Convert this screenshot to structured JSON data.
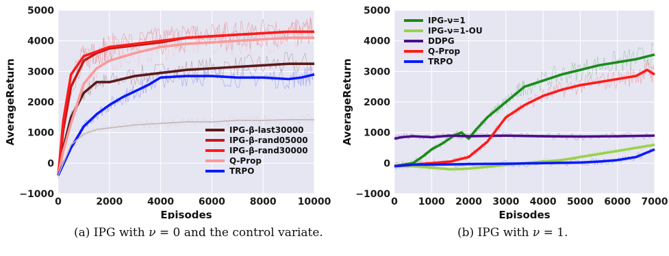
{
  "captions": {
    "left": {
      "prefix": "(a) IPG with ",
      "symbol": "ν",
      "suffix": " = 0 and the control variate."
    },
    "right": {
      "prefix": "(b) IPG with ",
      "symbol": "ν",
      "suffix": " = 1."
    }
  },
  "chart_data": [
    {
      "type": "line",
      "xlabel": "Episodes",
      "ylabel": "AverageReturn",
      "xlim": [
        0,
        10000
      ],
      "ylim": [
        -1000,
        5000
      ],
      "xticks": [
        0,
        2000,
        4000,
        6000,
        8000,
        10000
      ],
      "yticks": [
        -1000,
        0,
        1000,
        2000,
        3000,
        4000,
        5000
      ],
      "grid": true,
      "legend_position": "bottom-right",
      "series": [
        {
          "name": "IPG-β-last30000",
          "color": "#5c1a1a",
          "x": [
            0,
            200,
            500,
            1000,
            1500,
            2000,
            3000,
            4000,
            5000,
            6000,
            7000,
            8000,
            9000,
            10000
          ],
          "y": [
            -400,
            500,
            1500,
            2300,
            2650,
            2650,
            2850,
            2950,
            3050,
            3100,
            3150,
            3200,
            3250,
            3250
          ]
        },
        {
          "name": "IPG-β-rand05000",
          "color": "#c41a1a",
          "x": [
            0,
            200,
            500,
            1000,
            1500,
            2000,
            3000,
            4000,
            5000,
            6000,
            7000,
            8000,
            9000,
            10000
          ],
          "y": [
            -400,
            1100,
            2500,
            3350,
            3600,
            3750,
            3850,
            3950,
            4100,
            4150,
            4200,
            4250,
            4300,
            4300
          ]
        },
        {
          "name": "IPG-β-rand30000",
          "color": "#ff1a1a",
          "x": [
            0,
            200,
            500,
            1000,
            1500,
            2000,
            3000,
            4000,
            5000,
            6000,
            7000,
            8000,
            9000,
            10000
          ],
          "y": [
            -400,
            1400,
            2900,
            3500,
            3650,
            3800,
            3900,
            4000,
            4100,
            4150,
            4200,
            4250,
            4300,
            4300
          ]
        },
        {
          "name": "Q-Prop",
          "color": "#f89a9a",
          "x": [
            0,
            200,
            500,
            1000,
            1500,
            2000,
            3000,
            4000,
            5000,
            6000,
            7000,
            8000,
            9000,
            10000
          ],
          "y": [
            -400,
            400,
            1300,
            2600,
            3100,
            3350,
            3600,
            3800,
            3900,
            3950,
            4000,
            4050,
            4100,
            4100
          ]
        },
        {
          "name": "TRPO",
          "color": "#0a1aff",
          "x": [
            0,
            500,
            1000,
            1500,
            2000,
            2500,
            3000,
            3500,
            4000,
            5000,
            6000,
            7000,
            8000,
            9000,
            9500,
            10000
          ],
          "y": [
            -400,
            500,
            1200,
            1600,
            1900,
            2150,
            2350,
            2550,
            2800,
            2850,
            2850,
            2800,
            2800,
            2750,
            2800,
            2900
          ]
        },
        {
          "name": "",
          "color": "#c2b4b4",
          "x": [
            0,
            500,
            1000,
            1500,
            2000,
            3000,
            4000,
            5000,
            6000,
            7000,
            8000,
            9000,
            10000
          ],
          "y": [
            -400,
            600,
            950,
            1100,
            1150,
            1250,
            1300,
            1350,
            1350,
            1400,
            1400,
            1420,
            1420
          ]
        }
      ]
    },
    {
      "type": "line",
      "xlabel": "Episodes",
      "ylabel": "AverageReturn",
      "xlim": [
        0,
        7000
      ],
      "ylim": [
        -1000,
        5000
      ],
      "xticks": [
        0,
        1000,
        2000,
        3000,
        4000,
        5000,
        6000,
        7000
      ],
      "yticks": [
        -1000,
        0,
        1000,
        2000,
        3000,
        4000,
        5000
      ],
      "grid": true,
      "legend_position": "top-left",
      "series": [
        {
          "name": "IPG-ν=1",
          "color": "#1b8a1b",
          "x": [
            0,
            500,
            800,
            1000,
            1300,
            1600,
            1800,
            2000,
            2200,
            2500,
            2800,
            3000,
            3300,
            3500,
            4000,
            4500,
            5000,
            5500,
            6000,
            6500,
            7000
          ],
          "y": [
            -100,
            0,
            250,
            450,
            650,
            900,
            1000,
            800,
            1100,
            1500,
            1800,
            2000,
            2300,
            2500,
            2700,
            2900,
            3050,
            3200,
            3300,
            3400,
            3550
          ]
        },
        {
          "name": "IPG-ν=1-OU",
          "color": "#9ad14a",
          "x": [
            0,
            500,
            1000,
            1500,
            2000,
            2500,
            3000,
            3500,
            4000,
            4500,
            5000,
            5500,
            6000,
            6500,
            7000
          ],
          "y": [
            -100,
            -100,
            -150,
            -200,
            -180,
            -120,
            -60,
            0,
            50,
            100,
            200,
            300,
            400,
            500,
            600
          ]
        },
        {
          "name": "DDPG",
          "color": "#4b0f8a",
          "x": [
            0,
            200,
            500,
            1000,
            1500,
            2000,
            3000,
            4000,
            5000,
            6000,
            7000
          ],
          "y": [
            800,
            850,
            880,
            850,
            900,
            880,
            900,
            880,
            870,
            880,
            900
          ]
        },
        {
          "name": "Q-Prop",
          "color": "#ff1a1a",
          "x": [
            0,
            500,
            1000,
            1500,
            2000,
            2500,
            3000,
            3500,
            4000,
            4500,
            5000,
            5500,
            6000,
            6500,
            6800,
            7000
          ],
          "y": [
            -100,
            -50,
            0,
            50,
            200,
            700,
            1500,
            1900,
            2200,
            2400,
            2550,
            2650,
            2750,
            2850,
            3050,
            2900
          ]
        },
        {
          "name": "TRPO",
          "color": "#0a1aff",
          "x": [
            0,
            500,
            1000,
            2000,
            3000,
            4000,
            5000,
            5500,
            6000,
            6500,
            7000
          ],
          "y": [
            -100,
            -50,
            -50,
            -30,
            -20,
            0,
            20,
            50,
            100,
            200,
            450
          ]
        }
      ]
    }
  ]
}
